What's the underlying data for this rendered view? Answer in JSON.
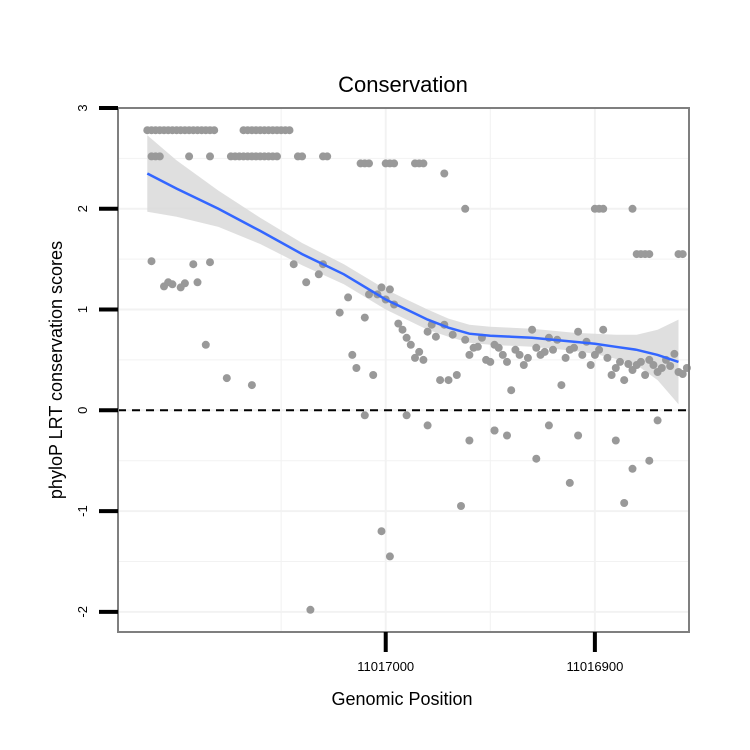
{
  "chart_data": {
    "type": "scatter",
    "title": "Conservation",
    "xlabel": "Genomic Position",
    "ylabel": "phyloP LRT conservation scores",
    "x_reversed": true,
    "xlim": [
      11017128,
      11016855
    ],
    "ylim": [
      -2.2,
      3.0
    ],
    "x_ticks": [
      11017000,
      11016900
    ],
    "x_tick_labels": [
      "11017000",
      "11016900"
    ],
    "y_ticks": [
      -2,
      -1,
      0,
      1,
      2,
      3
    ],
    "y_tick_labels": [
      "-2",
      "-1",
      "0",
      "1",
      "2",
      "3"
    ],
    "hline": 0,
    "colors": {
      "points": "#999999",
      "smooth": "#3366ff",
      "ribbon": "#d9d9d9",
      "hline": "#000000",
      "panel_border": "#7f7f7f",
      "grid": "#f2f2f2"
    },
    "series": [
      {
        "name": "points",
        "x": [
          11017114,
          11017112,
          11017110,
          11017108,
          11017106,
          11017104,
          11017102,
          11017100,
          11017098,
          11017096,
          11017094,
          11017092,
          11017090,
          11017088,
          11017086,
          11017084,
          11017082,
          11017068,
          11017066,
          11017064,
          11017062,
          11017060,
          11017058,
          11017056,
          11017054,
          11017052,
          11017050,
          11017048,
          11017046,
          11017112,
          11017110,
          11017108,
          11017094,
          11017084,
          11017074,
          11017072,
          11017070,
          11017068,
          11017066,
          11017064,
          11017062,
          11017060,
          11017058,
          11017056,
          11017054,
          11017052,
          11017042,
          11017040,
          11017030,
          11017028,
          11017012,
          11017010,
          11017008,
          11017000,
          11016998,
          11016996,
          11016986,
          11016984,
          11016982,
          11016972,
          11016962,
          11016900,
          11016898,
          11016896,
          11016882,
          11016880,
          11016878,
          11016876,
          11016874,
          11016860,
          11016858,
          11017112,
          11017106,
          11017104,
          11017102,
          11017098,
          11017096,
          11017092,
          11017090,
          11017086,
          11017084,
          11017076,
          11017064,
          11017044,
          11017038,
          11017030,
          11017032,
          11017022,
          11017018,
          11017016,
          11017014,
          11017010,
          11017008,
          11017006,
          11017004,
          11017002,
          11017000,
          11016998,
          11016996,
          11016994,
          11016992,
          11016990,
          11016988,
          11016986,
          11016984,
          11016982,
          11016980,
          11016978,
          11016976,
          11016974,
          11016972,
          11016970,
          11016968,
          11016966,
          11016962,
          11016960,
          11016958,
          11016956,
          11016954,
          11016952,
          11016950,
          11016948,
          11016946,
          11016944,
          11016942,
          11016940,
          11016938,
          11016936,
          11016934,
          11016932,
          11016930,
          11016928,
          11016926,
          11016924,
          11016922,
          11016920,
          11016918,
          11016916,
          11016914,
          11016912,
          11016910,
          11016908,
          11016906,
          11016904,
          11016902,
          11016900,
          11016898,
          11016896,
          11016894,
          11016892,
          11016890,
          11016888,
          11016886,
          11016884,
          11016882,
          11016880,
          11016878,
          11016876,
          11016874,
          11016872,
          11016870,
          11016868,
          11016866,
          11016864,
          11016862,
          11016860,
          11016858,
          11016856,
          11017010,
          11016990,
          11016942,
          11016928,
          11016912,
          11016882,
          11016874,
          11017002,
          11016998,
          11016964,
          11016948,
          11016922,
          11016908,
          11016890,
          11016886,
          11016870,
          11016980,
          11016948,
          11016960,
          11017036
        ],
        "y": [
          2.78,
          2.78,
          2.78,
          2.78,
          2.78,
          2.78,
          2.78,
          2.78,
          2.78,
          2.78,
          2.78,
          2.78,
          2.78,
          2.78,
          2.78,
          2.78,
          2.78,
          2.78,
          2.78,
          2.78,
          2.78,
          2.78,
          2.78,
          2.78,
          2.78,
          2.78,
          2.78,
          2.78,
          2.78,
          2.52,
          2.52,
          2.52,
          2.52,
          2.52,
          2.52,
          2.52,
          2.52,
          2.52,
          2.52,
          2.52,
          2.52,
          2.52,
          2.52,
          2.52,
          2.52,
          2.52,
          2.52,
          2.52,
          2.52,
          2.52,
          2.45,
          2.45,
          2.45,
          2.45,
          2.45,
          2.45,
          2.45,
          2.45,
          2.45,
          2.35,
          2.0,
          2.0,
          2.0,
          2.0,
          2.0,
          1.55,
          1.55,
          1.55,
          1.55,
          1.55,
          1.55,
          1.48,
          1.23,
          1.27,
          1.25,
          1.22,
          1.26,
          1.45,
          1.27,
          0.65,
          1.47,
          0.32,
          0.25,
          1.45,
          1.27,
          1.45,
          1.35,
          0.97,
          1.12,
          0.55,
          0.42,
          0.92,
          1.15,
          0.35,
          1.15,
          1.22,
          1.1,
          1.2,
          1.05,
          0.86,
          0.8,
          0.72,
          0.65,
          0.52,
          0.58,
          0.5,
          0.78,
          0.85,
          0.73,
          0.3,
          0.85,
          0.3,
          0.75,
          0.35,
          0.7,
          0.55,
          0.62,
          0.63,
          0.72,
          0.5,
          0.48,
          0.65,
          0.62,
          0.55,
          0.48,
          0.2,
          0.6,
          0.55,
          0.45,
          0.52,
          0.8,
          0.62,
          0.55,
          0.58,
          0.72,
          0.6,
          0.7,
          0.25,
          0.52,
          0.6,
          0.62,
          0.78,
          0.55,
          0.68,
          0.45,
          0.55,
          0.6,
          0.8,
          0.52,
          0.35,
          0.42,
          0.48,
          0.3,
          0.46,
          0.4,
          0.45,
          0.48,
          0.35,
          0.5,
          0.45,
          0.38,
          0.42,
          0.5,
          0.44,
          0.56,
          0.38,
          0.36,
          0.42,
          -0.05,
          -0.05,
          -0.25,
          -0.48,
          -0.72,
          -0.58,
          -0.5,
          -1.2,
          -1.45,
          -0.95,
          -0.2,
          -0.15,
          -0.25,
          -0.3,
          -0.92,
          -0.1,
          -0.15,
          -0.2,
          -0.3,
          -1.98
        ],
        "color": "#999999"
      },
      {
        "name": "smooth",
        "x": [
          11017114,
          11017100,
          11017080,
          11017060,
          11017040,
          11017020,
          11017000,
          11016990,
          11016980,
          11016970,
          11016960,
          11016950,
          11016940,
          11016930,
          11016920,
          11016910,
          11016900,
          11016890,
          11016880,
          11016870,
          11016860
        ],
        "y": [
          2.35,
          2.2,
          2.0,
          1.78,
          1.55,
          1.35,
          1.1,
          1.0,
          0.9,
          0.82,
          0.76,
          0.74,
          0.73,
          0.72,
          0.7,
          0.68,
          0.66,
          0.63,
          0.6,
          0.55,
          0.48
        ],
        "se": [
          0.38,
          0.28,
          0.18,
          0.13,
          0.11,
          0.1,
          0.1,
          0.1,
          0.1,
          0.09,
          0.09,
          0.09,
          0.09,
          0.09,
          0.09,
          0.09,
          0.1,
          0.12,
          0.15,
          0.25,
          0.42
        ],
        "color": "#3366ff"
      }
    ]
  }
}
